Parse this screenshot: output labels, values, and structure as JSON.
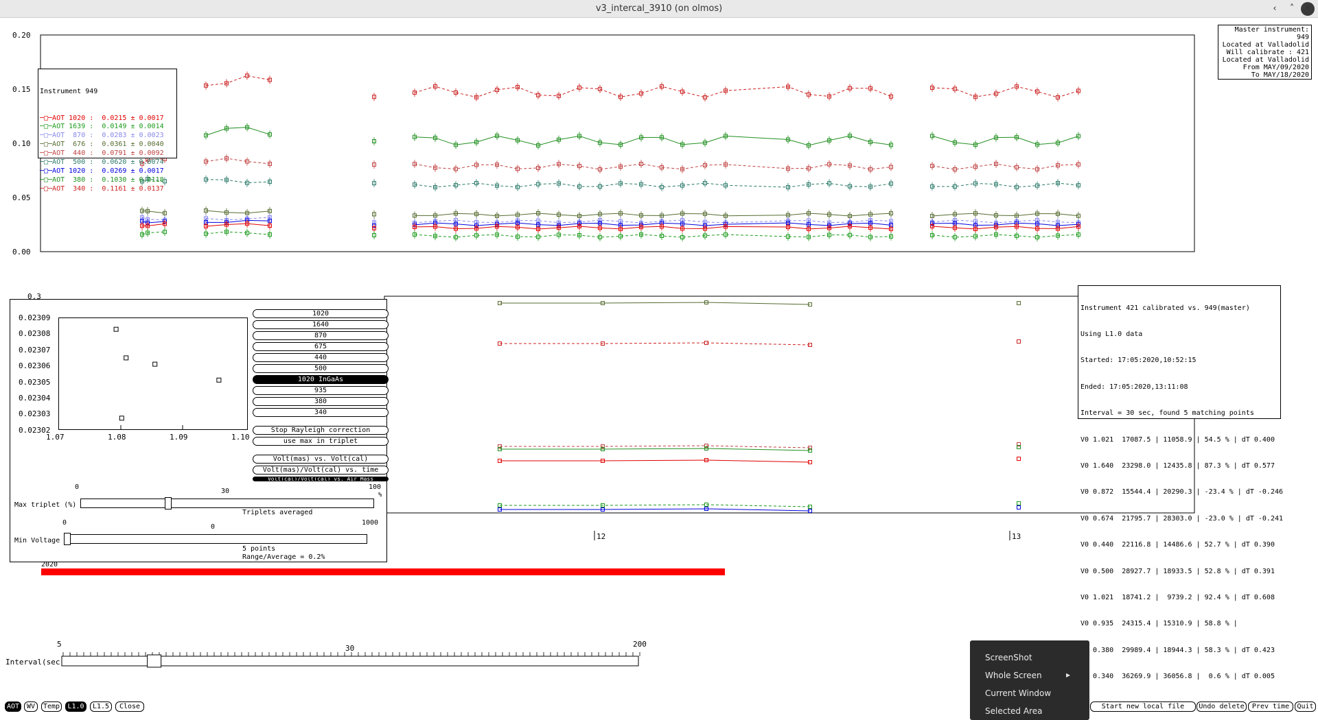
{
  "window": {
    "title": "v3_intercal_3910 (on olmos)",
    "min_glyph": "‹",
    "max_glyph": "˄",
    "close_glyph": "✕"
  },
  "top_plot": {
    "yticks": [
      "0.20",
      "0.15",
      "0.10",
      "0.05",
      "0.00"
    ],
    "legend_title": "Instrument 949",
    "legend": [
      {
        "label": "AOT 1020 :",
        "value": "0.0215 ± 0.0017",
        "color": "#e00000"
      },
      {
        "label": "AOT 1639 :",
        "value": "0.0149 ± 0.0014",
        "color": "#1a9a1a"
      },
      {
        "label": "AOT  870 :",
        "value": "0.0283 ± 0.0023",
        "color": "#8888ee"
      },
      {
        "label": "AOT  676 :",
        "value": "0.0361 ± 0.0040",
        "color": "#556b2f"
      },
      {
        "label": "AOT  440 :",
        "value": "0.0791 ± 0.0092",
        "color": "#c04040"
      },
      {
        "label": "AOT  500 :",
        "value": "0.0620 ± 0.0074",
        "color": "#2a7a6a"
      },
      {
        "label": "AOT 1020 :",
        "value": "0.0269 ± 0.0017",
        "color": "#0000dd"
      },
      {
        "label": "AOT  380 :",
        "value": "0.1030 ± 0.0118",
        "color": "#1f8f1f"
      },
      {
        "label": "AOT  340 :",
        "value": "0.1161 ± 0.0137",
        "color": "#cc2020"
      }
    ]
  },
  "master_box": {
    "lines": [
      "Master instrument: 949",
      "Located at Valladolid",
      "Will calibrate  : 421",
      "Located at Valladolid",
      "From MAY/09/2020",
      "To MAY/18/2020"
    ]
  },
  "calib_box": {
    "lines": [
      "Instrument 421 calibrated vs. 949(master)",
      "Using L1.0 data",
      "Started: 17:05:2020,10:52:15",
      "Ended: 17:05:2020,13:11:08",
      "Interval = 30 sec, found 5 matching points",
      "V0 1.021  17087.5 | 11058.9 | 54.5 % | dT 0.400",
      "V0 1.640  23298.0 | 12435.8 | 87.3 % | dT 0.577",
      "V0 0.872  15544.4 | 20290.3 | -23.4 % | dT -0.246",
      "V0 0.674  21795.7 | 28303.0 | -23.0 % | dT -0.241",
      "V0 0.440  22116.8 | 14486.6 | 52.7 % | dT 0.390",
      "V0 0.500  28927.7 | 18933.5 | 52.8 % | dT 0.391",
      "V0 1.021  18741.2 |  9739.2 | 92.4 % | dT 0.608",
      "V0 0.935  24315.4 | 15310.9 | 58.8 % |",
      "V0 0.380  29989.4 | 18944.3 | 58.3 % | dT 0.423",
      "V0 0.340  36269.9 | 36056.8 |  0.6 % | dT 0.005"
    ]
  },
  "lower_plot": {
    "ytick_top": "0.3",
    "xticks": [
      "12",
      "13"
    ],
    "year_label": "2020"
  },
  "triplet_panel": {
    "yticks": [
      "0.02309",
      "0.02308",
      "0.02307",
      "0.02306",
      "0.02305",
      "0.02304",
      "0.02303",
      "0.02302"
    ],
    "xticks": [
      "1.07",
      "1.08",
      "1.09",
      "1.10"
    ],
    "points": [
      {
        "x": 1.0791,
        "y": 0.023083
      },
      {
        "x": 1.0807,
        "y": 0.023065
      },
      {
        "x": 1.0853,
        "y": 0.023061
      },
      {
        "x": 1.0955,
        "y": 0.023051
      },
      {
        "x": 1.08,
        "y": 0.023027
      }
    ],
    "wavelength_buttons": [
      "1020",
      "1640",
      "870",
      "675",
      "440",
      "500",
      "1020 InGaAs",
      "935",
      "380",
      "340"
    ],
    "selected_wavelength": "1020 InGaAs",
    "rayleigh_button": "Stop Rayleigh correction",
    "max_triplet_button": "use max in triplet",
    "plot_buttons": [
      "Volt(mas) vs. Volt(cal)",
      "Volt(mas)/Volt(cal) vs. time",
      "Volt(cal)/Volt(cal) vs. Air Mass"
    ],
    "max_triplet": {
      "label": "Max triplet (%)",
      "ticks": [
        "0",
        "30",
        "100"
      ],
      "value": 30,
      "max": 100,
      "unit": "%"
    },
    "min_voltage": {
      "label": "Min Voltage",
      "ticks": [
        "0",
        "0",
        "1000"
      ],
      "value": 0,
      "max": 1000
    },
    "triplets_averaged": "Triplets averaged",
    "points_text": "5 points",
    "range_text": "Range/Average = 0.2%"
  },
  "interval_slider": {
    "label": "Interval(sec)",
    "ticks": [
      "5",
      "30",
      "200"
    ],
    "value": 30,
    "min": 5,
    "max": 200
  },
  "bottom_buttons": {
    "left": [
      "AOT",
      "WV",
      "Temp",
      "L1.0",
      "L1.5",
      "Close"
    ],
    "selected": "L1.0",
    "right": [
      "Start new local file",
      "Undo delete",
      "Prev time",
      "Quit"
    ]
  },
  "context_menu": {
    "items": [
      "ScreenShot",
      "Whole Screen",
      "Current Window",
      "Selected Area"
    ],
    "submenu_arrow": "▸"
  },
  "colors": {
    "accent_red": "#ff0000"
  }
}
